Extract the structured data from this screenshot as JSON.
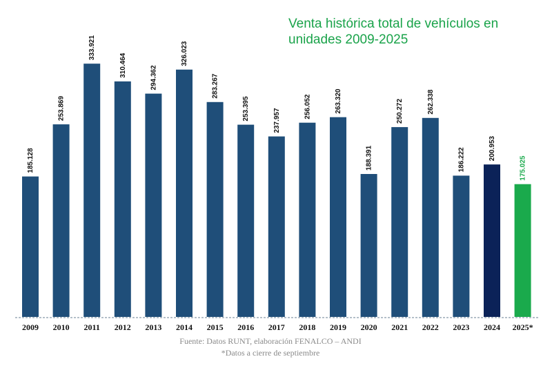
{
  "chart_data": {
    "type": "bar",
    "title_lines": [
      "Venta histórica total de  vehículos en",
      "unidades 2009-2025"
    ],
    "categories": [
      "2009",
      "2010",
      "2011",
      "2012",
      "2013",
      "2014",
      "2015",
      "2016",
      "2017",
      "2018",
      "2019",
      "2020",
      "2021",
      "2022",
      "2023",
      "2024",
      "2025*"
    ],
    "values": [
      185128,
      253869,
      333921,
      310464,
      294362,
      326023,
      283267,
      253395,
      237957,
      256052,
      263320,
      188391,
      250272,
      262338,
      186222,
      200953,
      175025
    ],
    "value_labels": [
      "185.128",
      "253.869",
      "333.921",
      "310.464",
      "294.362",
      "326.023",
      "283.267",
      "253.395",
      "237.957",
      "256.052",
      "263.320",
      "188.391",
      "250.272",
      "262.338",
      "186.222",
      "200.953",
      "175.025"
    ],
    "bar_colors": [
      "#1f4e79",
      "#1f4e79",
      "#1f4e79",
      "#1f4e79",
      "#1f4e79",
      "#1f4e79",
      "#1f4e79",
      "#1f4e79",
      "#1f4e79",
      "#1f4e79",
      "#1f4e79",
      "#1f4e79",
      "#1f4e79",
      "#1f4e79",
      "#1f4e79",
      "#0b2258",
      "#1aaa4c"
    ],
    "label_colors": [
      "#111111",
      "#111111",
      "#111111",
      "#111111",
      "#111111",
      "#111111",
      "#111111",
      "#111111",
      "#111111",
      "#111111",
      "#111111",
      "#111111",
      "#111111",
      "#111111",
      "#111111",
      "#111111",
      "#1aaa4c"
    ],
    "ylim": [
      0,
      345000
    ],
    "xlabel": "",
    "ylabel": "",
    "grid": false,
    "source_note": "Fuente: Datos RUNT, elaboración FENALCO – ANDI",
    "footnote": "*Datos a cierre de septiembre"
  }
}
